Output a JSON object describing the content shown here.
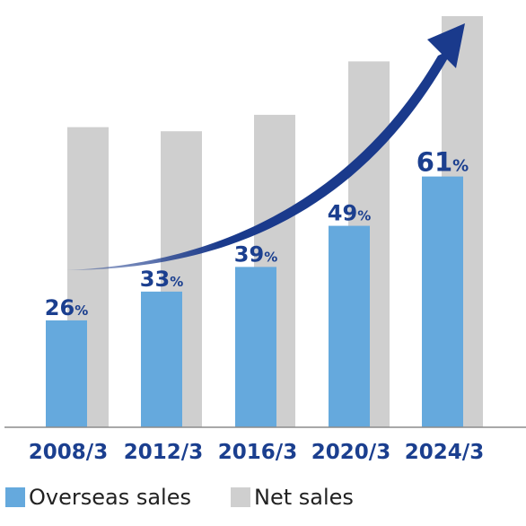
{
  "chart_data": {
    "type": "bar",
    "categories": [
      "2008/3",
      "2012/3",
      "2016/3",
      "2020/3",
      "2024/3"
    ],
    "series": [
      {
        "name": "Overseas sales",
        "values": [
          26,
          33,
          39,
          49,
          61
        ],
        "labels": [
          "26",
          "33",
          "39",
          "49",
          "61"
        ],
        "unit": "%"
      },
      {
        "name": "Net sales",
        "values": [
          73,
          72,
          76,
          89,
          100
        ]
      }
    ],
    "ylim": [
      0,
      100
    ],
    "grid": false,
    "legend_position": "bottom-left",
    "trend_arrow": true,
    "colors": {
      "overseas": "#65a9dd",
      "net": "#cfcfcf",
      "label_text": "#1b3f8f",
      "axis_text": "#1b3f8f",
      "arrow": "#1a3a8c",
      "axis_line": "#8c8c8c"
    }
  }
}
